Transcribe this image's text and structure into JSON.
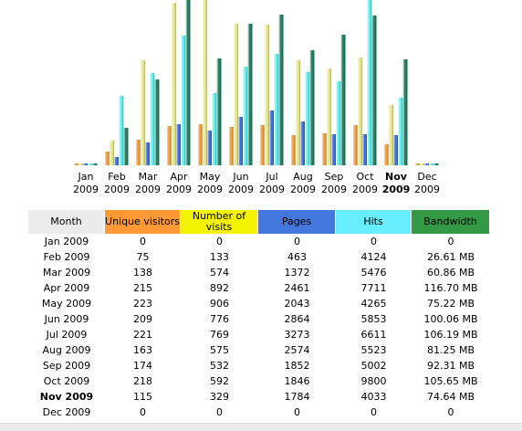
{
  "colors": {
    "unique_visitors": "#f0a040",
    "visits": "#e8e890",
    "pages": "#4070e0",
    "hits": "#60f0f0",
    "bandwidth": "#208060",
    "header_month_bg": "#ececec",
    "header_visitors_bg": "#ff9933",
    "header_visits_bg": "#f4f400",
    "header_pages_bg": "#4477dd",
    "header_hits_bg": "#66eeff",
    "header_bandwidth_bg": "#339944"
  },
  "table": {
    "headers": {
      "month": "Month",
      "unique_visitors": "Unique visitors",
      "visits": "Number of visits",
      "pages": "Pages",
      "hits": "Hits",
      "bandwidth": "Bandwidth"
    },
    "rows": [
      {
        "month": "Jan 2009",
        "unique_visitors": "0",
        "visits": "0",
        "pages": "0",
        "hits": "0",
        "bandwidth": "0"
      },
      {
        "month": "Feb 2009",
        "unique_visitors": "75",
        "visits": "133",
        "pages": "463",
        "hits": "4124",
        "bandwidth": "26.61 MB"
      },
      {
        "month": "Mar 2009",
        "unique_visitors": "138",
        "visits": "574",
        "pages": "1372",
        "hits": "5476",
        "bandwidth": "60.86 MB"
      },
      {
        "month": "Apr 2009",
        "unique_visitors": "215",
        "visits": "892",
        "pages": "2461",
        "hits": "7711",
        "bandwidth": "116.70 MB"
      },
      {
        "month": "May 2009",
        "unique_visitors": "223",
        "visits": "906",
        "pages": "2043",
        "hits": "4265",
        "bandwidth": "75.22 MB"
      },
      {
        "month": "Jun 2009",
        "unique_visitors": "209",
        "visits": "776",
        "pages": "2864",
        "hits": "5853",
        "bandwidth": "100.06 MB"
      },
      {
        "month": "Jul 2009",
        "unique_visitors": "221",
        "visits": "769",
        "pages": "3273",
        "hits": "6611",
        "bandwidth": "106.19 MB"
      },
      {
        "month": "Aug 2009",
        "unique_visitors": "163",
        "visits": "575",
        "pages": "2574",
        "hits": "5523",
        "bandwidth": "81.25 MB"
      },
      {
        "month": "Sep 2009",
        "unique_visitors": "174",
        "visits": "532",
        "pages": "1852",
        "hits": "5002",
        "bandwidth": "92.31 MB"
      },
      {
        "month": "Oct 2009",
        "unique_visitors": "218",
        "visits": "592",
        "pages": "1846",
        "hits": "9800",
        "bandwidth": "105.65 MB"
      },
      {
        "month": "Nov 2009",
        "unique_visitors": "115",
        "visits": "329",
        "pages": "1784",
        "hits": "4033",
        "bandwidth": "74.64 MB",
        "current": true
      },
      {
        "month": "Dec 2009",
        "unique_visitors": "0",
        "visits": "0",
        "pages": "0",
        "hits": "0",
        "bandwidth": "0"
      }
    ]
  },
  "chart_data": {
    "type": "bar",
    "categories": [
      [
        "Jan",
        "2009"
      ],
      [
        "Feb",
        "2009"
      ],
      [
        "Mar",
        "2009"
      ],
      [
        "Apr",
        "2009"
      ],
      [
        "May",
        "2009"
      ],
      [
        "Jun",
        "2009"
      ],
      [
        "Jul",
        "2009"
      ],
      [
        "Aug",
        "2009"
      ],
      [
        "Sep",
        "2009"
      ],
      [
        "Oct",
        "2009"
      ],
      [
        "Nov",
        "2009"
      ],
      [
        "Dec",
        "2009"
      ]
    ],
    "current_index": 10,
    "series": [
      {
        "key": "unique_visitors",
        "values": [
          0,
          75,
          138,
          215,
          223,
          209,
          221,
          163,
          174,
          218,
          115,
          0
        ]
      },
      {
        "key": "visits",
        "values": [
          0,
          133,
          574,
          892,
          906,
          776,
          769,
          575,
          532,
          592,
          329,
          0
        ]
      },
      {
        "key": "pages",
        "values": [
          0,
          463,
          1372,
          2461,
          2043,
          2864,
          3273,
          2574,
          1852,
          1846,
          1784,
          0
        ]
      },
      {
        "key": "hits",
        "values": [
          0,
          4124,
          5476,
          7711,
          4265,
          5853,
          6611,
          5523,
          5002,
          9800,
          4033,
          0
        ]
      },
      {
        "key": "bandwidth",
        "values": [
          0,
          26.61,
          60.86,
          116.7,
          75.22,
          100.06,
          106.19,
          81.25,
          92.31,
          105.65,
          74.64,
          0
        ]
      }
    ],
    "scale_groups": [
      [
        "unique_visitors",
        "visits"
      ],
      [
        "pages",
        "hits"
      ],
      [
        "bandwidth"
      ]
    ],
    "legend": "none",
    "grid": false
  }
}
